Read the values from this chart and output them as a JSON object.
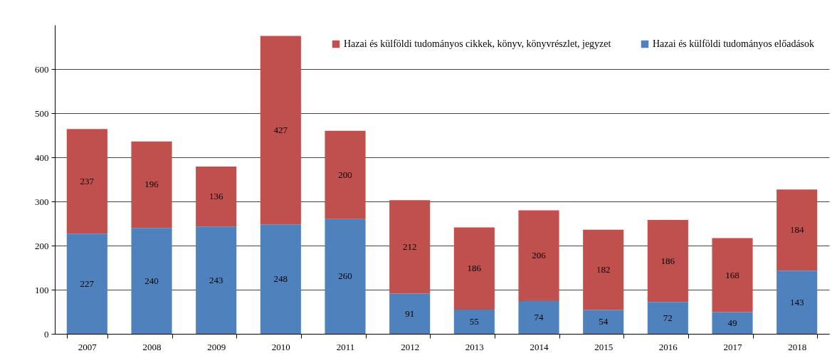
{
  "chart_data": {
    "type": "bar",
    "stacked": true,
    "categories": [
      "2007",
      "2008",
      "2009",
      "2010",
      "2011",
      "2012",
      "2013",
      "2014",
      "2015",
      "2016",
      "2017",
      "2018"
    ],
    "series": [
      {
        "name": "Hazai és külföldi tudományos előadások",
        "color": "#4f81bd",
        "values": [
          227,
          240,
          243,
          248,
          260,
          91,
          55,
          74,
          54,
          72,
          49,
          143
        ]
      },
      {
        "name": "Hazai és külföldi tudományos cikkek, könyv, könyvrészlet, jegyzet",
        "color": "#c0504d",
        "values": [
          237,
          196,
          136,
          427,
          200,
          212,
          186,
          206,
          182,
          186,
          168,
          184
        ]
      }
    ],
    "ylim": [
      0,
      700
    ],
    "yticks": [
      0,
      100,
      200,
      300,
      400,
      500,
      600
    ],
    "grid": "y",
    "legend": "top right",
    "data_labels": true
  }
}
